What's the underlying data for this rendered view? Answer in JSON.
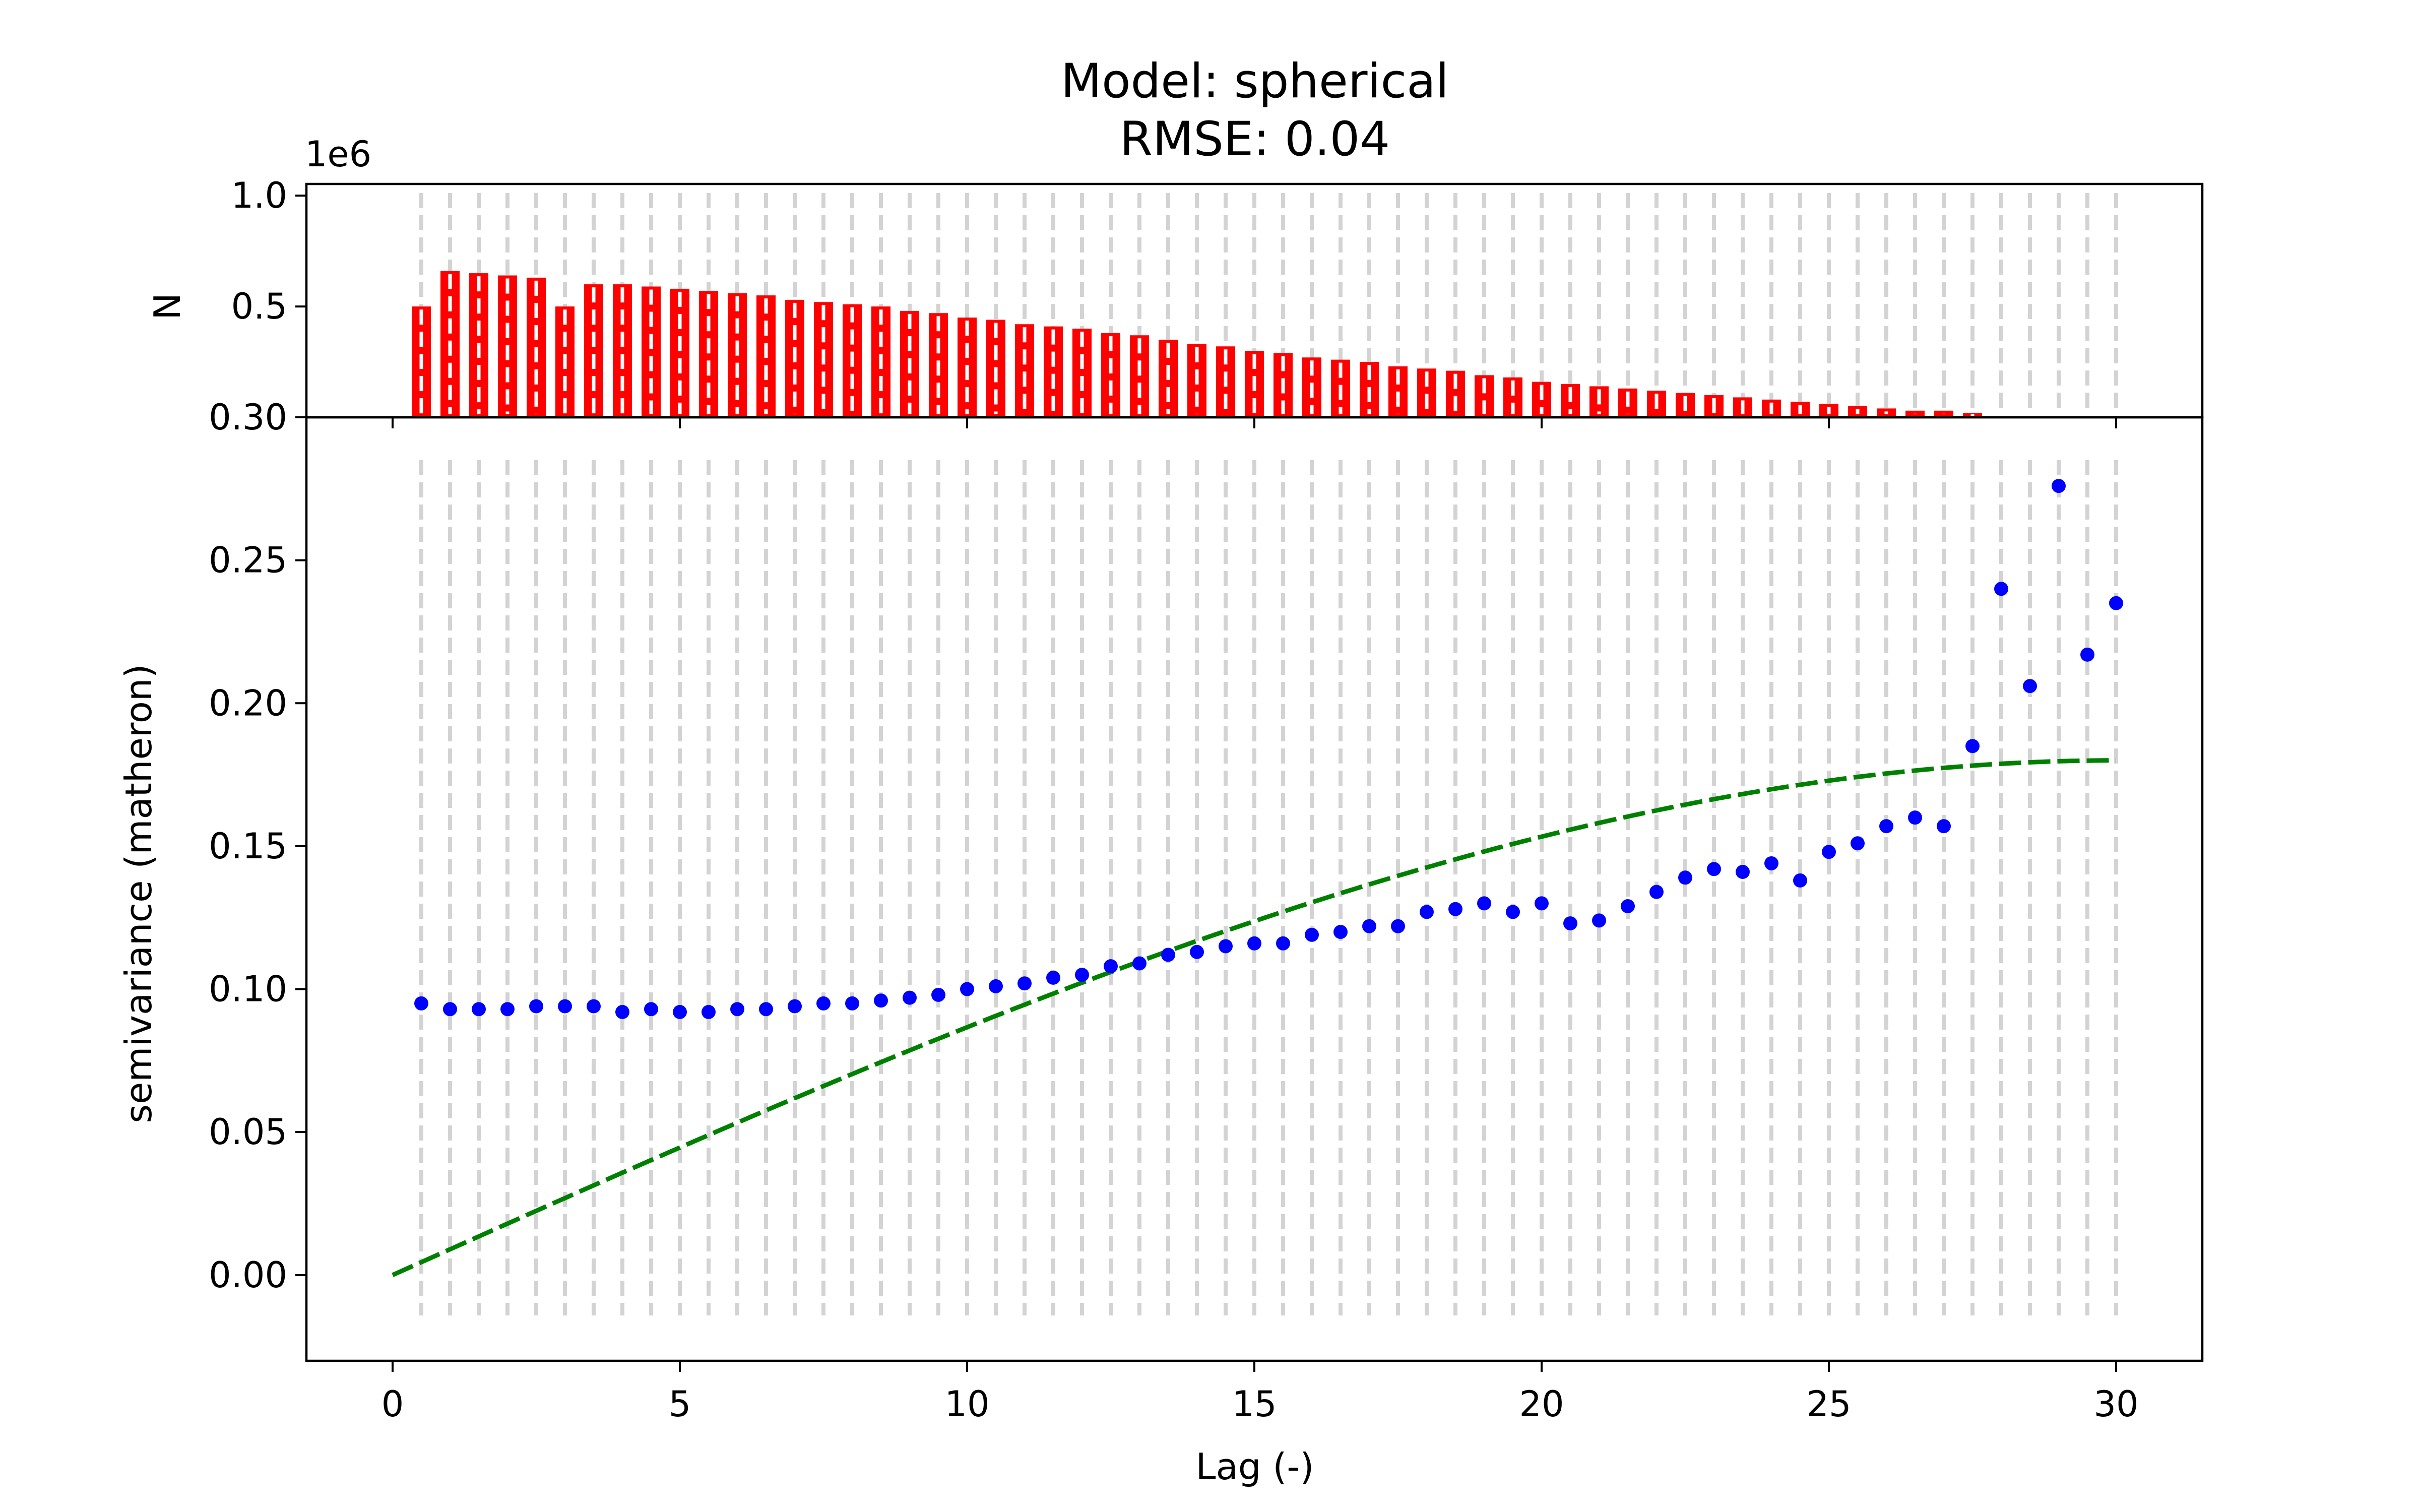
{
  "chart_data": {
    "type": "scatter",
    "title_lines": [
      "Model: spherical",
      "RMSE: 0.04"
    ],
    "xlabel": "Lag (-)",
    "ylabel": "semivariance (matheron)",
    "xlim": [
      -1.5,
      31.5
    ],
    "ylim": [
      -0.03,
      0.3
    ],
    "xticks": [
      0,
      5,
      10,
      15,
      20,
      25,
      30
    ],
    "yticks": [
      0.0,
      0.05,
      0.1,
      0.15,
      0.2,
      0.25,
      0.3
    ],
    "yticklabels": [
      "0.00",
      "0.05",
      "0.10",
      "0.15",
      "0.20",
      "0.25",
      "0.30"
    ],
    "lags": [
      0.5,
      1.0,
      1.5,
      2.0,
      2.5,
      3.0,
      3.5,
      4.0,
      4.5,
      5.0,
      5.5,
      6.0,
      6.5,
      7.0,
      7.5,
      8.0,
      8.5,
      9.0,
      9.5,
      10.0,
      10.5,
      11.0,
      11.5,
      12.0,
      12.5,
      13.0,
      13.5,
      14.0,
      14.5,
      15.0,
      15.5,
      16.0,
      16.5,
      17.0,
      17.5,
      18.0,
      18.5,
      19.0,
      19.5,
      20.0,
      20.5,
      21.0,
      21.5,
      22.0,
      22.5,
      23.0,
      23.5,
      24.0,
      24.5,
      25.0,
      25.5,
      26.0,
      26.5,
      27.0,
      27.5,
      28.0,
      28.5,
      29.0,
      29.5,
      30.0
    ],
    "experimental": {
      "color": "#0000ff",
      "values": [
        0.095,
        0.093,
        0.093,
        0.093,
        0.094,
        0.094,
        0.094,
        0.092,
        0.093,
        0.092,
        0.092,
        0.093,
        0.093,
        0.094,
        0.095,
        0.095,
        0.096,
        0.097,
        0.098,
        0.1,
        0.101,
        0.102,
        0.104,
        0.105,
        0.108,
        0.109,
        0.112,
        0.113,
        0.115,
        0.116,
        0.116,
        0.119,
        0.12,
        0.122,
        0.122,
        0.127,
        0.128,
        0.13,
        0.127,
        0.13,
        0.123,
        0.124,
        0.129,
        0.134,
        0.139,
        0.142,
        0.141,
        0.144,
        0.138,
        0.148,
        0.151,
        0.157,
        0.16,
        0.157,
        0.185,
        0.24,
        0.206,
        0.276,
        0.217,
        0.235
      ]
    },
    "model": {
      "name": "spherical",
      "color": "#008000",
      "nugget": 0.0,
      "sill": 0.18,
      "range": 30.0,
      "x_start": 0,
      "x_end": 30
    },
    "histogram": {
      "ylabel": "N",
      "offset_label": "1e6",
      "ylim": [
        0.0,
        1.0
      ],
      "yticks": [
        0.5,
        1.0
      ],
      "yticklabels": [
        "0.5",
        "1.0"
      ],
      "bar_color": "#ff0000",
      "counts": [
        0.5,
        0.66,
        0.65,
        0.64,
        0.63,
        0.5,
        0.6,
        0.6,
        0.59,
        0.58,
        0.57,
        0.56,
        0.55,
        0.53,
        0.52,
        0.51,
        0.5,
        0.48,
        0.47,
        0.45,
        0.44,
        0.42,
        0.41,
        0.4,
        0.38,
        0.37,
        0.35,
        0.33,
        0.32,
        0.3,
        0.29,
        0.27,
        0.26,
        0.25,
        0.23,
        0.22,
        0.21,
        0.19,
        0.18,
        0.16,
        0.15,
        0.14,
        0.13,
        0.12,
        0.11,
        0.1,
        0.09,
        0.08,
        0.07,
        0.06,
        0.05,
        0.04,
        0.03,
        0.03,
        0.02,
        0.0,
        0.0,
        0.0,
        0.0,
        0.0
      ]
    },
    "gridline_color": "#d3d3d3",
    "grid": false
  }
}
